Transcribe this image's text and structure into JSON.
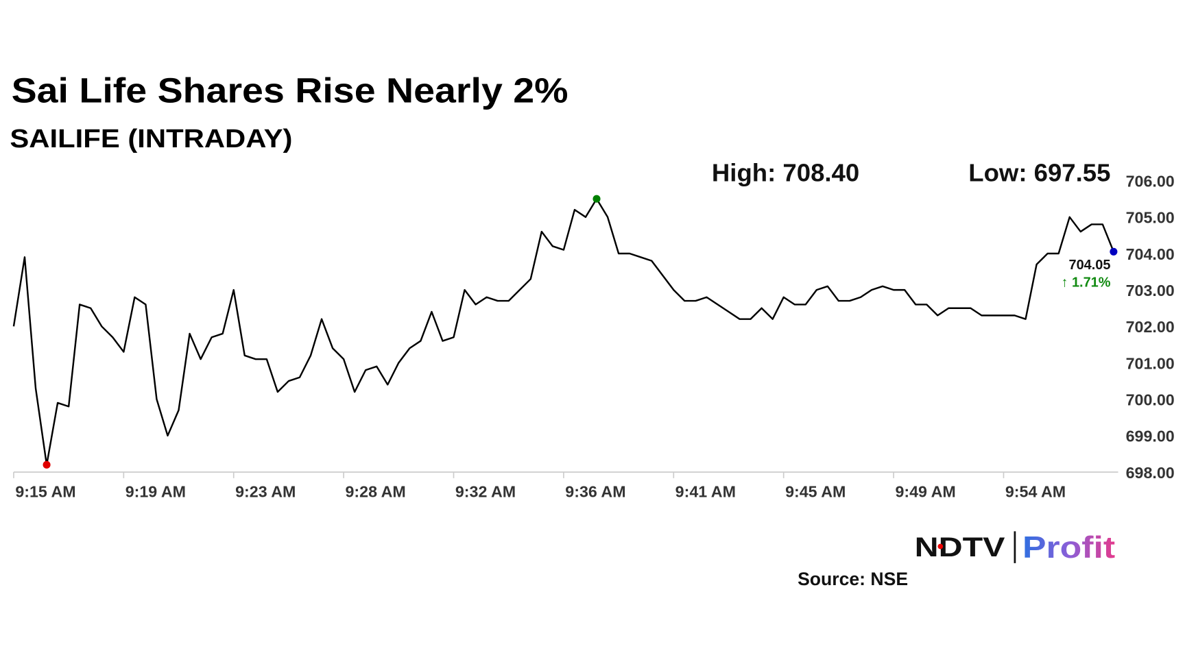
{
  "chart_data": {
    "type": "line",
    "title": "Sai Life Shares Rise Nearly 2%",
    "subtitle": "SAILIFE (INTRADAY)",
    "high_label": "High: 708.40",
    "low_label": "Low: 697.55",
    "last_value_label": "704.05",
    "change_label": "↑ 1.71%",
    "source": "Source: NSE",
    "logo": {
      "left": "NDTV",
      "right": "Profit"
    },
    "categories": [
      "9:15 AM",
      null,
      null,
      null,
      null,
      null,
      null,
      null,
      null,
      null,
      "9:19 AM",
      null,
      null,
      null,
      null,
      null,
      null,
      null,
      null,
      null,
      "9:23 AM",
      null,
      null,
      null,
      null,
      null,
      null,
      null,
      null,
      null,
      "9:28 AM",
      null,
      null,
      null,
      null,
      null,
      null,
      null,
      null,
      null,
      "9:32 AM",
      null,
      null,
      null,
      null,
      null,
      null,
      null,
      null,
      null,
      "9:36 AM",
      null,
      null,
      null,
      null,
      null,
      null,
      null,
      null,
      null,
      "9:41 AM",
      null,
      null,
      null,
      null,
      null,
      null,
      null,
      null,
      null,
      "9:45 AM",
      null,
      null,
      null,
      null,
      null,
      null,
      null,
      null,
      null,
      "9:49 AM",
      null,
      null,
      null,
      null,
      null,
      null,
      null,
      null,
      null,
      "9:54 AM",
      null,
      null,
      null,
      null,
      null,
      null,
      null,
      null,
      null,
      null
    ],
    "values": [
      702.0,
      703.9,
      700.3,
      698.2,
      699.9,
      699.8,
      702.6,
      702.5,
      702.0,
      701.7,
      701.3,
      702.8,
      702.6,
      700.0,
      699.0,
      699.7,
      701.8,
      701.1,
      701.7,
      701.8,
      703.0,
      701.2,
      701.1,
      701.1,
      700.2,
      700.5,
      700.6,
      701.2,
      702.2,
      701.4,
      701.1,
      700.2,
      700.8,
      700.9,
      700.4,
      701.0,
      701.4,
      701.6,
      702.4,
      701.6,
      701.7,
      703.0,
      702.6,
      702.8,
      702.7,
      702.7,
      703.0,
      703.3,
      704.6,
      704.2,
      704.1,
      705.2,
      705.0,
      705.5,
      705.0,
      704.0,
      704.0,
      703.9,
      703.8,
      703.4,
      703.0,
      702.7,
      702.7,
      702.8,
      702.6,
      702.4,
      702.2,
      702.2,
      702.5,
      702.2,
      702.8,
      702.6,
      702.6,
      703.0,
      703.1,
      702.7,
      702.7,
      702.8,
      703.0,
      703.1,
      703.0,
      703.0,
      702.6,
      702.6,
      702.3,
      702.5,
      702.5,
      702.5,
      702.3,
      702.3,
      702.3,
      702.3,
      702.2,
      703.7,
      704.0,
      704.0,
      705.0,
      704.6,
      704.8,
      704.8,
      704.05
    ],
    "color": "#000000",
    "markers": {
      "min_color": "#e00000",
      "max_color": "#008000",
      "last_color": "#0000c0"
    },
    "ylim": [
      698,
      706
    ],
    "yticks": [
      {
        "value": 698,
        "label": "698.00"
      },
      {
        "value": 699,
        "label": "699.00"
      },
      {
        "value": 700,
        "label": "700.00"
      },
      {
        "value": 701,
        "label": "701.00"
      },
      {
        "value": 702,
        "label": "702.00"
      },
      {
        "value": 703,
        "label": "703.00"
      },
      {
        "value": 704,
        "label": "704.00"
      },
      {
        "value": 705,
        "label": "705.00"
      },
      {
        "value": 706,
        "label": "706.00"
      }
    ]
  }
}
